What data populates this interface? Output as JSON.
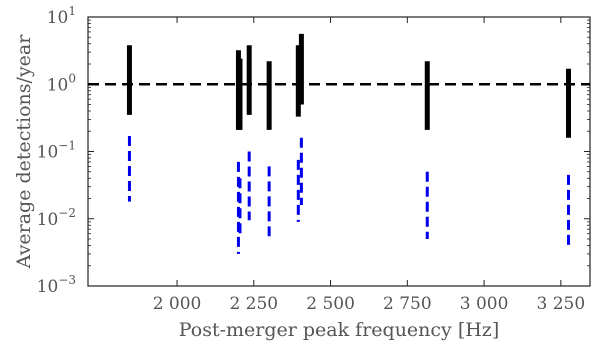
{
  "chart_data": {
    "type": "scatter",
    "title": "",
    "xlabel": "Post-merger peak frequency [Hz]",
    "ylabel": "Average detections/year",
    "xlim": [
      1710,
      3345
    ],
    "ylim": [
      0.001,
      10
    ],
    "yscale": "log",
    "grid": false,
    "x_ticks": [
      2000,
      2250,
      2500,
      2750,
      3000,
      3250
    ],
    "x_tick_labels": [
      "2 000",
      "2 250",
      "2 500",
      "2 750",
      "3 000",
      "3 250"
    ],
    "y_ticks": [
      0.001,
      0.01,
      0.1,
      1,
      10
    ],
    "y_tick_labels": [
      {
        "base": "10",
        "exp": "−3"
      },
      {
        "base": "10",
        "exp": "−2"
      },
      {
        "base": "10",
        "exp": "−1"
      },
      {
        "base": "10",
        "exp": "0"
      },
      {
        "base": "10",
        "exp": "1"
      }
    ],
    "reference_line": {
      "y": 1,
      "color": "#000000",
      "style": "dashed"
    },
    "series": [
      {
        "style": "solid",
        "color": "#000000",
        "ranges": [
          {
            "x": 1845,
            "low": 0.35,
            "high": 3.8
          },
          {
            "x": 2200,
            "low": 0.21,
            "high": 3.2
          },
          {
            "x": 2205,
            "low": 0.21,
            "high": 2.4
          },
          {
            "x": 2235,
            "low": 0.35,
            "high": 3.8
          },
          {
            "x": 2300,
            "low": 0.21,
            "high": 2.2
          },
          {
            "x": 2395,
            "low": 0.33,
            "high": 3.8
          },
          {
            "x": 2405,
            "low": 0.5,
            "high": 5.6
          },
          {
            "x": 2815,
            "low": 0.21,
            "high": 2.2
          },
          {
            "x": 3275,
            "low": 0.16,
            "high": 1.7
          }
        ]
      },
      {
        "style": "dashed",
        "color": "#0000ee",
        "ranges": [
          {
            "x": 1845,
            "low": 0.018,
            "high": 0.17
          },
          {
            "x": 2200,
            "low": 0.003,
            "high": 0.07
          },
          {
            "x": 2205,
            "low": 0.006,
            "high": 0.04
          },
          {
            "x": 2235,
            "low": 0.0095,
            "high": 0.1
          },
          {
            "x": 2300,
            "low": 0.0055,
            "high": 0.06
          },
          {
            "x": 2395,
            "low": 0.009,
            "high": 0.075
          },
          {
            "x": 2405,
            "low": 0.016,
            "high": 0.16
          },
          {
            "x": 2815,
            "low": 0.005,
            "high": 0.05
          },
          {
            "x": 3275,
            "low": 0.004,
            "high": 0.045
          }
        ]
      }
    ]
  }
}
